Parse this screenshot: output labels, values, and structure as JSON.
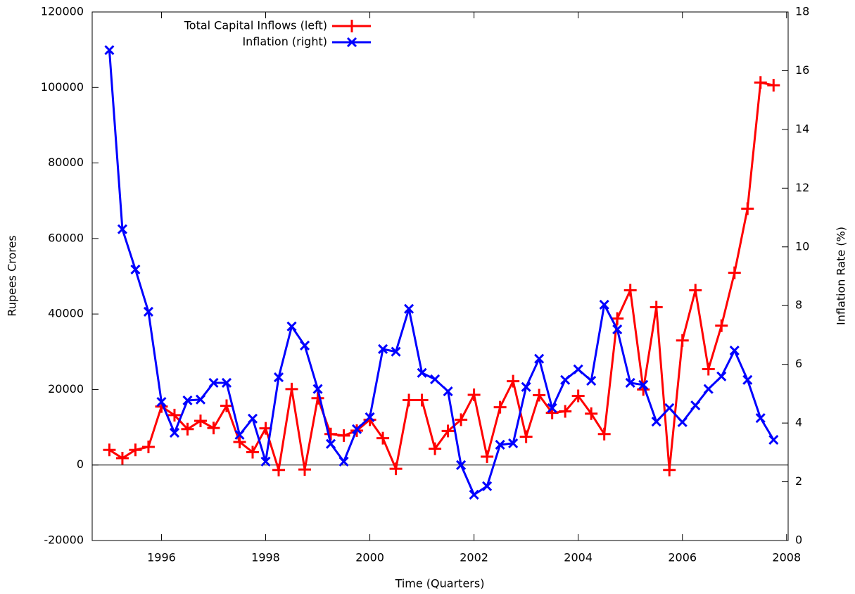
{
  "chart_data": {
    "type": "line",
    "xlabel": "Time (Quarters)",
    "ylabel": "Rupees Crores",
    "y2label": "Inflation Rate (%)",
    "legend": "top-left",
    "zero_line": true,
    "x": [
      1995.0,
      1995.25,
      1995.5,
      1995.75,
      1996.0,
      1996.25,
      1996.5,
      1996.75,
      1997.0,
      1997.25,
      1997.5,
      1997.75,
      1998.0,
      1998.25,
      1998.5,
      1998.75,
      1999.0,
      1999.25,
      1999.5,
      1999.75,
      2000.0,
      2000.25,
      2000.5,
      2000.75,
      2001.0,
      2001.25,
      2001.5,
      2001.75,
      2002.0,
      2002.25,
      2002.5,
      2002.75,
      2003.0,
      2003.25,
      2003.5,
      2003.75,
      2004.0,
      2004.25,
      2004.5,
      2004.75,
      2005.0,
      2005.25,
      2005.5,
      2005.75,
      2006.0,
      2006.25,
      2006.5,
      2006.75,
      2007.0,
      2007.25,
      2007.5,
      2007.75
    ],
    "xlim": [
      1994.67,
      2008.03
    ],
    "xticks": [
      1996,
      1998,
      2000,
      2002,
      2004,
      2006,
      2008
    ],
    "ylim": [
      -20000,
      120000
    ],
    "yticks": [
      -20000,
      0,
      20000,
      40000,
      60000,
      80000,
      100000,
      120000
    ],
    "y2lim": [
      0,
      18
    ],
    "y2ticks": [
      0,
      2,
      4,
      6,
      8,
      10,
      12,
      14,
      16,
      18
    ],
    "series": [
      {
        "name": "Total Capital Inflows (left)",
        "color": "#ff0000",
        "marker": "plus",
        "values": [
          4000,
          1800,
          4000,
          4800,
          15500,
          13200,
          9500,
          11700,
          9800,
          15700,
          6100,
          3400,
          9700,
          -1300,
          20100,
          -1200,
          17700,
          8200,
          7800,
          9100,
          12000,
          7100,
          -1000,
          17200,
          17200,
          4300,
          9000,
          12000,
          18600,
          2200,
          15300,
          22200,
          7500,
          18500,
          13800,
          14200,
          18300,
          13600,
          8200,
          38800,
          46300,
          20000,
          41800,
          -1300,
          33000,
          46300,
          25400,
          36900,
          50900,
          67900,
          101300,
          100600
        ]
      },
      {
        "name": "Inflation  (right)",
        "color": "#0000ff",
        "marker": "cross",
        "axis": "y2",
        "values": [
          16.7,
          10.6,
          9.23,
          7.79,
          4.72,
          3.67,
          4.77,
          4.8,
          5.37,
          5.37,
          3.6,
          4.15,
          2.69,
          5.56,
          7.29,
          6.64,
          5.16,
          3.29,
          2.69,
          3.79,
          4.2,
          6.52,
          6.43,
          7.89,
          5.71,
          5.49,
          5.08,
          2.57,
          1.56,
          1.85,
          3.26,
          3.31,
          5.23,
          6.19,
          4.51,
          5.47,
          5.83,
          5.44,
          8.03,
          7.19,
          5.37,
          5.3,
          4.05,
          4.51,
          4.03,
          4.6,
          5.16,
          5.59,
          6.47,
          5.47,
          4.17,
          3.43
        ]
      }
    ]
  }
}
